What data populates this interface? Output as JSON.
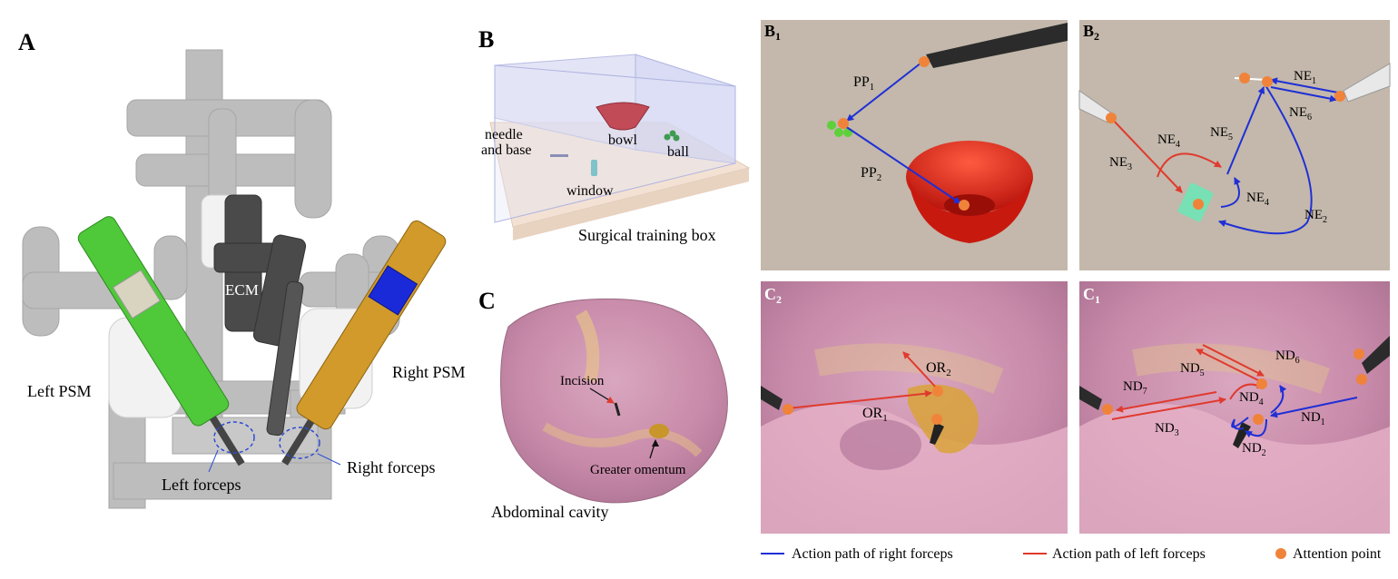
{
  "panels": {
    "a": {
      "letter": "A",
      "ecm": "ECM",
      "left_psm": "Left PSM",
      "right_psm": "Right PSM",
      "left_forceps": "Left forceps",
      "right_forceps": "Right forceps"
    },
    "b": {
      "letter": "B",
      "needle_line1": "needle",
      "needle_line2": "and base",
      "bowl": "bowl",
      "ball": "ball",
      "window": "window",
      "box": "Surgical training box"
    },
    "c": {
      "letter": "C",
      "incision": "Incision",
      "omentum": "Greater omentum",
      "cavity": "Abdominal cavity"
    },
    "b1": {
      "letter": "B",
      "sub": "1",
      "pp1": "PP",
      "pp1_sub": "1",
      "pp2": "PP",
      "pp2_sub": "2"
    },
    "b2": {
      "letter": "B",
      "sub": "2",
      "ne1": "NE",
      "ne1_sub": "1",
      "ne2": "NE",
      "ne2_sub": "2",
      "ne3": "NE",
      "ne3_sub": "3",
      "ne4a": "NE",
      "ne4a_sub": "4",
      "ne4b": "NE",
      "ne4b_sub": "4",
      "ne5": "NE",
      "ne5_sub": "5",
      "ne6": "NE",
      "ne6_sub": "6"
    },
    "c2": {
      "letter": "C",
      "sub": "2",
      "or1": "OR",
      "or1_sub": "1",
      "or2": "OR",
      "or2_sub": "2"
    },
    "c1": {
      "letter": "C",
      "sub": "1",
      "nd1": "ND",
      "nd1_sub": "1",
      "nd2": "ND",
      "nd2_sub": "2",
      "nd3": "ND",
      "nd3_sub": "3",
      "nd4": "ND",
      "nd4_sub": "4",
      "nd5": "ND",
      "nd5_sub": "5",
      "nd6": "ND",
      "nd6_sub": "6",
      "nd7": "ND",
      "nd7_sub": "7"
    }
  },
  "legend": {
    "right": "Action path of right forceps",
    "left": "Action path of left forceps",
    "attention": "Attention point"
  },
  "colors": {
    "right_path": "#1f2fd6",
    "left_path": "#e03a2e",
    "attention": "#f0833a",
    "psm_left": "#4fc83a",
    "psm_right": "#d19a2a"
  }
}
